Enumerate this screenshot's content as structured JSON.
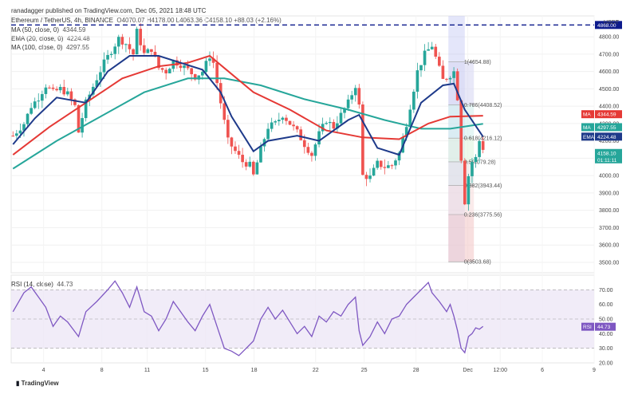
{
  "header": {
    "publisher": "ranadagger published on TradingView.com, Dec 05, 2021 18:48 UTC",
    "symbol": "Ethereum / TetherUS, 4h, BINANCE",
    "ohlc": "O4070.07  H4178.00  L4063.36  C4158.10  +88.03 (+2.16%)",
    "ind1_name": "MA (50, close, 0)",
    "ind1_value": "4344.59",
    "ind2_name": "EMA (20, close, 0)",
    "ind2_value": "4224.48",
    "ind3_name": "MA (100, close, 0)",
    "ind3_value": "4297.55",
    "rsi_label": "RSI (14, close)",
    "rsi_value": "44.73"
  },
  "colors": {
    "up": "#26a69a",
    "down": "#ef5350",
    "ema20": "#1e3a8a",
    "ma50": "#e53935",
    "ma100": "#26a69a",
    "rsi": "#7e57c2",
    "dash": "#0d1b8c"
  },
  "chart_data": {
    "type": "candlestick",
    "currency": "USDT",
    "price_range": [
      3440,
      4920
    ],
    "y_ticks": [
      3500,
      3600,
      3700,
      3800,
      3900,
      4000,
      4100,
      4200,
      4300,
      4400,
      4500,
      4600,
      4700,
      4800
    ],
    "y_tick_labels": [
      "3500.00",
      "3600.00",
      "3700.00",
      "3800.00",
      "3900.00",
      "4000.00",
      "4100.00",
      "4200.00",
      "4300.00",
      "4400.00",
      "4500.00",
      "4600.00",
      "4700.00",
      "4800.00"
    ],
    "x_labels": [
      "4",
      "8",
      "11",
      "15",
      "18",
      "22",
      "25",
      "28",
      "Dec",
      "12:00",
      "6",
      "9"
    ],
    "resistance": 4868.0,
    "fib_levels": [
      {
        "ratio": "1",
        "price": 4654.88,
        "label": "1(4654.88)"
      },
      {
        "ratio": "0.786",
        "price": 4408.52,
        "label": "0.786(4408.52)"
      },
      {
        "ratio": "0.618",
        "price": 4216.12,
        "label": "0.618(4216.12)"
      },
      {
        "ratio": "0.5",
        "price": 4079.28,
        "label": "0.5(4079.28)"
      },
      {
        "ratio": "0.382",
        "price": 3943.44,
        "label": "0.382(3943.44)"
      },
      {
        "ratio": "0.236",
        "price": 3775.56,
        "label": "0.236(3775.56)"
      },
      {
        "ratio": "0",
        "price": 3503.68,
        "label": "0(3503.68)"
      }
    ],
    "price_tags": [
      {
        "value": "4868.00",
        "price": 4868,
        "color": "#0d1b8c"
      },
      {
        "value": "4344.59",
        "price": 4344.59,
        "color": "#e53935",
        "prefix": "MA"
      },
      {
        "value": "4297.55",
        "price": 4297.55,
        "color": "#26a69a",
        "prefix": "MA"
      },
      {
        "value": "4224.48",
        "price": 4224.48,
        "color": "#1e3a8a",
        "prefix": "EMA"
      },
      {
        "value": "4158.10",
        "price": 4158.1,
        "color": "#26a69a",
        "sub": "01:11:11"
      }
    ],
    "price_series": [
      {
        "x": 0,
        "c": 4230
      },
      {
        "x": 3,
        "c": 4300
      },
      {
        "x": 5,
        "c": 4400
      },
      {
        "x": 7,
        "c": 4450
      },
      {
        "x": 9,
        "c": 4520
      },
      {
        "x": 11,
        "c": 4480
      },
      {
        "x": 13,
        "c": 4500
      },
      {
        "x": 15,
        "c": 4470
      },
      {
        "x": 17,
        "c": 4400
      },
      {
        "x": 18,
        "c": 4250
      },
      {
        "x": 20,
        "c": 4420
      },
      {
        "x": 23,
        "c": 4560
      },
      {
        "x": 25,
        "c": 4650
      },
      {
        "x": 27,
        "c": 4720
      },
      {
        "x": 29,
        "c": 4790
      },
      {
        "x": 31,
        "c": 4760
      },
      {
        "x": 33,
        "c": 4700
      },
      {
        "x": 34,
        "c": 4830
      },
      {
        "x": 36,
        "c": 4700
      },
      {
        "x": 38,
        "c": 4730
      },
      {
        "x": 40,
        "c": 4620
      },
      {
        "x": 42,
        "c": 4600
      },
      {
        "x": 44,
        "c": 4660
      },
      {
        "x": 46,
        "c": 4640
      },
      {
        "x": 48,
        "c": 4610
      },
      {
        "x": 50,
        "c": 4570
      },
      {
        "x": 52,
        "c": 4600
      },
      {
        "x": 54,
        "c": 4690
      },
      {
        "x": 55,
        "c": 4650
      },
      {
        "x": 57,
        "c": 4420
      },
      {
        "x": 59,
        "c": 4200
      },
      {
        "x": 61,
        "c": 4140
      },
      {
        "x": 63,
        "c": 4080
      },
      {
        "x": 65,
        "c": 4060
      },
      {
        "x": 66,
        "c": 4000
      },
      {
        "x": 68,
        "c": 4150
      },
      {
        "x": 70,
        "c": 4280
      },
      {
        "x": 72,
        "c": 4300
      },
      {
        "x": 74,
        "c": 4350
      },
      {
        "x": 76,
        "c": 4300
      },
      {
        "x": 78,
        "c": 4250
      },
      {
        "x": 80,
        "c": 4180
      },
      {
        "x": 82,
        "c": 4120
      },
      {
        "x": 84,
        "c": 4240
      },
      {
        "x": 86,
        "c": 4320
      },
      {
        "x": 88,
        "c": 4280
      },
      {
        "x": 90,
        "c": 4350
      },
      {
        "x": 92,
        "c": 4420
      },
      {
        "x": 94,
        "c": 4520
      },
      {
        "x": 95,
        "c": 4400
      },
      {
        "x": 96,
        "c": 4000
      },
      {
        "x": 98,
        "c": 3990
      },
      {
        "x": 100,
        "c": 4070
      },
      {
        "x": 102,
        "c": 4050
      },
      {
        "x": 104,
        "c": 4060
      },
      {
        "x": 106,
        "c": 4130
      },
      {
        "x": 108,
        "c": 4300
      },
      {
        "x": 110,
        "c": 4500
      },
      {
        "x": 111,
        "c": 4600
      },
      {
        "x": 113,
        "c": 4700
      },
      {
        "x": 115,
        "c": 4750
      },
      {
        "x": 116,
        "c": 4680
      },
      {
        "x": 118,
        "c": 4550
      },
      {
        "x": 120,
        "c": 4580
      },
      {
        "x": 121,
        "c": 4600
      },
      {
        "x": 122,
        "c": 4450
      },
      {
        "x": 123,
        "c": 4100
      },
      {
        "x": 124,
        "c": 3850
      },
      {
        "x": 125,
        "c": 4000
      },
      {
        "x": 126,
        "c": 4080
      },
      {
        "x": 127,
        "c": 4100
      },
      {
        "x": 128,
        "c": 4200
      },
      {
        "x": 129,
        "c": 4158
      }
    ],
    "ema20": [
      {
        "x": 0,
        "v": 4180
      },
      {
        "x": 6,
        "v": 4330
      },
      {
        "x": 12,
        "v": 4450
      },
      {
        "x": 20,
        "v": 4420
      },
      {
        "x": 26,
        "v": 4600
      },
      {
        "x": 32,
        "v": 4690
      },
      {
        "x": 40,
        "v": 4690
      },
      {
        "x": 46,
        "v": 4650
      },
      {
        "x": 52,
        "v": 4610
      },
      {
        "x": 57,
        "v": 4480
      },
      {
        "x": 60,
        "v": 4340
      },
      {
        "x": 66,
        "v": 4140
      },
      {
        "x": 70,
        "v": 4200
      },
      {
        "x": 78,
        "v": 4230
      },
      {
        "x": 84,
        "v": 4200
      },
      {
        "x": 92,
        "v": 4320
      },
      {
        "x": 95,
        "v": 4350
      },
      {
        "x": 100,
        "v": 4160
      },
      {
        "x": 106,
        "v": 4120
      },
      {
        "x": 112,
        "v": 4420
      },
      {
        "x": 118,
        "v": 4520
      },
      {
        "x": 121,
        "v": 4530
      },
      {
        "x": 124,
        "v": 4380
      },
      {
        "x": 129,
        "v": 4224
      }
    ],
    "ma50": [
      {
        "x": 0,
        "v": 4120
      },
      {
        "x": 10,
        "v": 4280
      },
      {
        "x": 20,
        "v": 4420
      },
      {
        "x": 30,
        "v": 4560
      },
      {
        "x": 40,
        "v": 4630
      },
      {
        "x": 48,
        "v": 4650
      },
      {
        "x": 54,
        "v": 4690
      },
      {
        "x": 58,
        "v": 4620
      },
      {
        "x": 66,
        "v": 4480
      },
      {
        "x": 76,
        "v": 4380
      },
      {
        "x": 86,
        "v": 4260
      },
      {
        "x": 96,
        "v": 4220
      },
      {
        "x": 106,
        "v": 4210
      },
      {
        "x": 114,
        "v": 4300
      },
      {
        "x": 120,
        "v": 4340
      },
      {
        "x": 129,
        "v": 4345
      }
    ],
    "ma100": [
      {
        "x": 0,
        "v": 4040
      },
      {
        "x": 12,
        "v": 4200
      },
      {
        "x": 24,
        "v": 4340
      },
      {
        "x": 36,
        "v": 4480
      },
      {
        "x": 48,
        "v": 4560
      },
      {
        "x": 58,
        "v": 4560
      },
      {
        "x": 68,
        "v": 4520
      },
      {
        "x": 80,
        "v": 4440
      },
      {
        "x": 92,
        "v": 4380
      },
      {
        "x": 102,
        "v": 4320
      },
      {
        "x": 112,
        "v": 4270
      },
      {
        "x": 120,
        "v": 4270
      },
      {
        "x": 129,
        "v": 4298
      }
    ],
    "rsi": {
      "range": [
        20,
        80
      ],
      "y_ticks": [
        20,
        30,
        40,
        50,
        60,
        70
      ],
      "y_tick_labels": [
        "20.00",
        "30.00",
        "40.00",
        "50.00",
        "60.00",
        "70.00"
      ],
      "upper": 70,
      "lower": 30,
      "values": [
        {
          "x": 0,
          "v": 55
        },
        {
          "x": 3,
          "v": 68
        },
        {
          "x": 5,
          "v": 72
        },
        {
          "x": 7,
          "v": 65
        },
        {
          "x": 9,
          "v": 58
        },
        {
          "x": 11,
          "v": 45
        },
        {
          "x": 13,
          "v": 52
        },
        {
          "x": 15,
          "v": 48
        },
        {
          "x": 18,
          "v": 38
        },
        {
          "x": 20,
          "v": 55
        },
        {
          "x": 23,
          "v": 62
        },
        {
          "x": 26,
          "v": 70
        },
        {
          "x": 28,
          "v": 76
        },
        {
          "x": 30,
          "v": 68
        },
        {
          "x": 32,
          "v": 58
        },
        {
          "x": 34,
          "v": 72
        },
        {
          "x": 36,
          "v": 55
        },
        {
          "x": 38,
          "v": 52
        },
        {
          "x": 40,
          "v": 42
        },
        {
          "x": 42,
          "v": 50
        },
        {
          "x": 44,
          "v": 62
        },
        {
          "x": 46,
          "v": 55
        },
        {
          "x": 48,
          "v": 48
        },
        {
          "x": 50,
          "v": 42
        },
        {
          "x": 52,
          "v": 52
        },
        {
          "x": 54,
          "v": 60
        },
        {
          "x": 56,
          "v": 45
        },
        {
          "x": 58,
          "v": 30
        },
        {
          "x": 60,
          "v": 28
        },
        {
          "x": 62,
          "v": 25
        },
        {
          "x": 64,
          "v": 30
        },
        {
          "x": 66,
          "v": 35
        },
        {
          "x": 68,
          "v": 50
        },
        {
          "x": 70,
          "v": 58
        },
        {
          "x": 72,
          "v": 50
        },
        {
          "x": 74,
          "v": 56
        },
        {
          "x": 76,
          "v": 48
        },
        {
          "x": 78,
          "v": 40
        },
        {
          "x": 80,
          "v": 45
        },
        {
          "x": 82,
          "v": 38
        },
        {
          "x": 84,
          "v": 52
        },
        {
          "x": 86,
          "v": 48
        },
        {
          "x": 88,
          "v": 55
        },
        {
          "x": 90,
          "v": 52
        },
        {
          "x": 92,
          "v": 60
        },
        {
          "x": 94,
          "v": 65
        },
        {
          "x": 95,
          "v": 42
        },
        {
          "x": 96,
          "v": 32
        },
        {
          "x": 98,
          "v": 38
        },
        {
          "x": 100,
          "v": 48
        },
        {
          "x": 102,
          "v": 40
        },
        {
          "x": 104,
          "v": 50
        },
        {
          "x": 106,
          "v": 52
        },
        {
          "x": 108,
          "v": 60
        },
        {
          "x": 110,
          "v": 65
        },
        {
          "x": 112,
          "v": 70
        },
        {
          "x": 114,
          "v": 75
        },
        {
          "x": 115,
          "v": 68
        },
        {
          "x": 117,
          "v": 62
        },
        {
          "x": 119,
          "v": 55
        },
        {
          "x": 120,
          "v": 60
        },
        {
          "x": 121,
          "v": 52
        },
        {
          "x": 122,
          "v": 42
        },
        {
          "x": 123,
          "v": 30
        },
        {
          "x": 124,
          "v": 27
        },
        {
          "x": 125,
          "v": 38
        },
        {
          "x": 126,
          "v": 40
        },
        {
          "x": 127,
          "v": 44
        },
        {
          "x": 128,
          "v": 43
        },
        {
          "x": 129,
          "v": 45
        }
      ]
    }
  },
  "footer": {
    "brand": "TradingView"
  }
}
